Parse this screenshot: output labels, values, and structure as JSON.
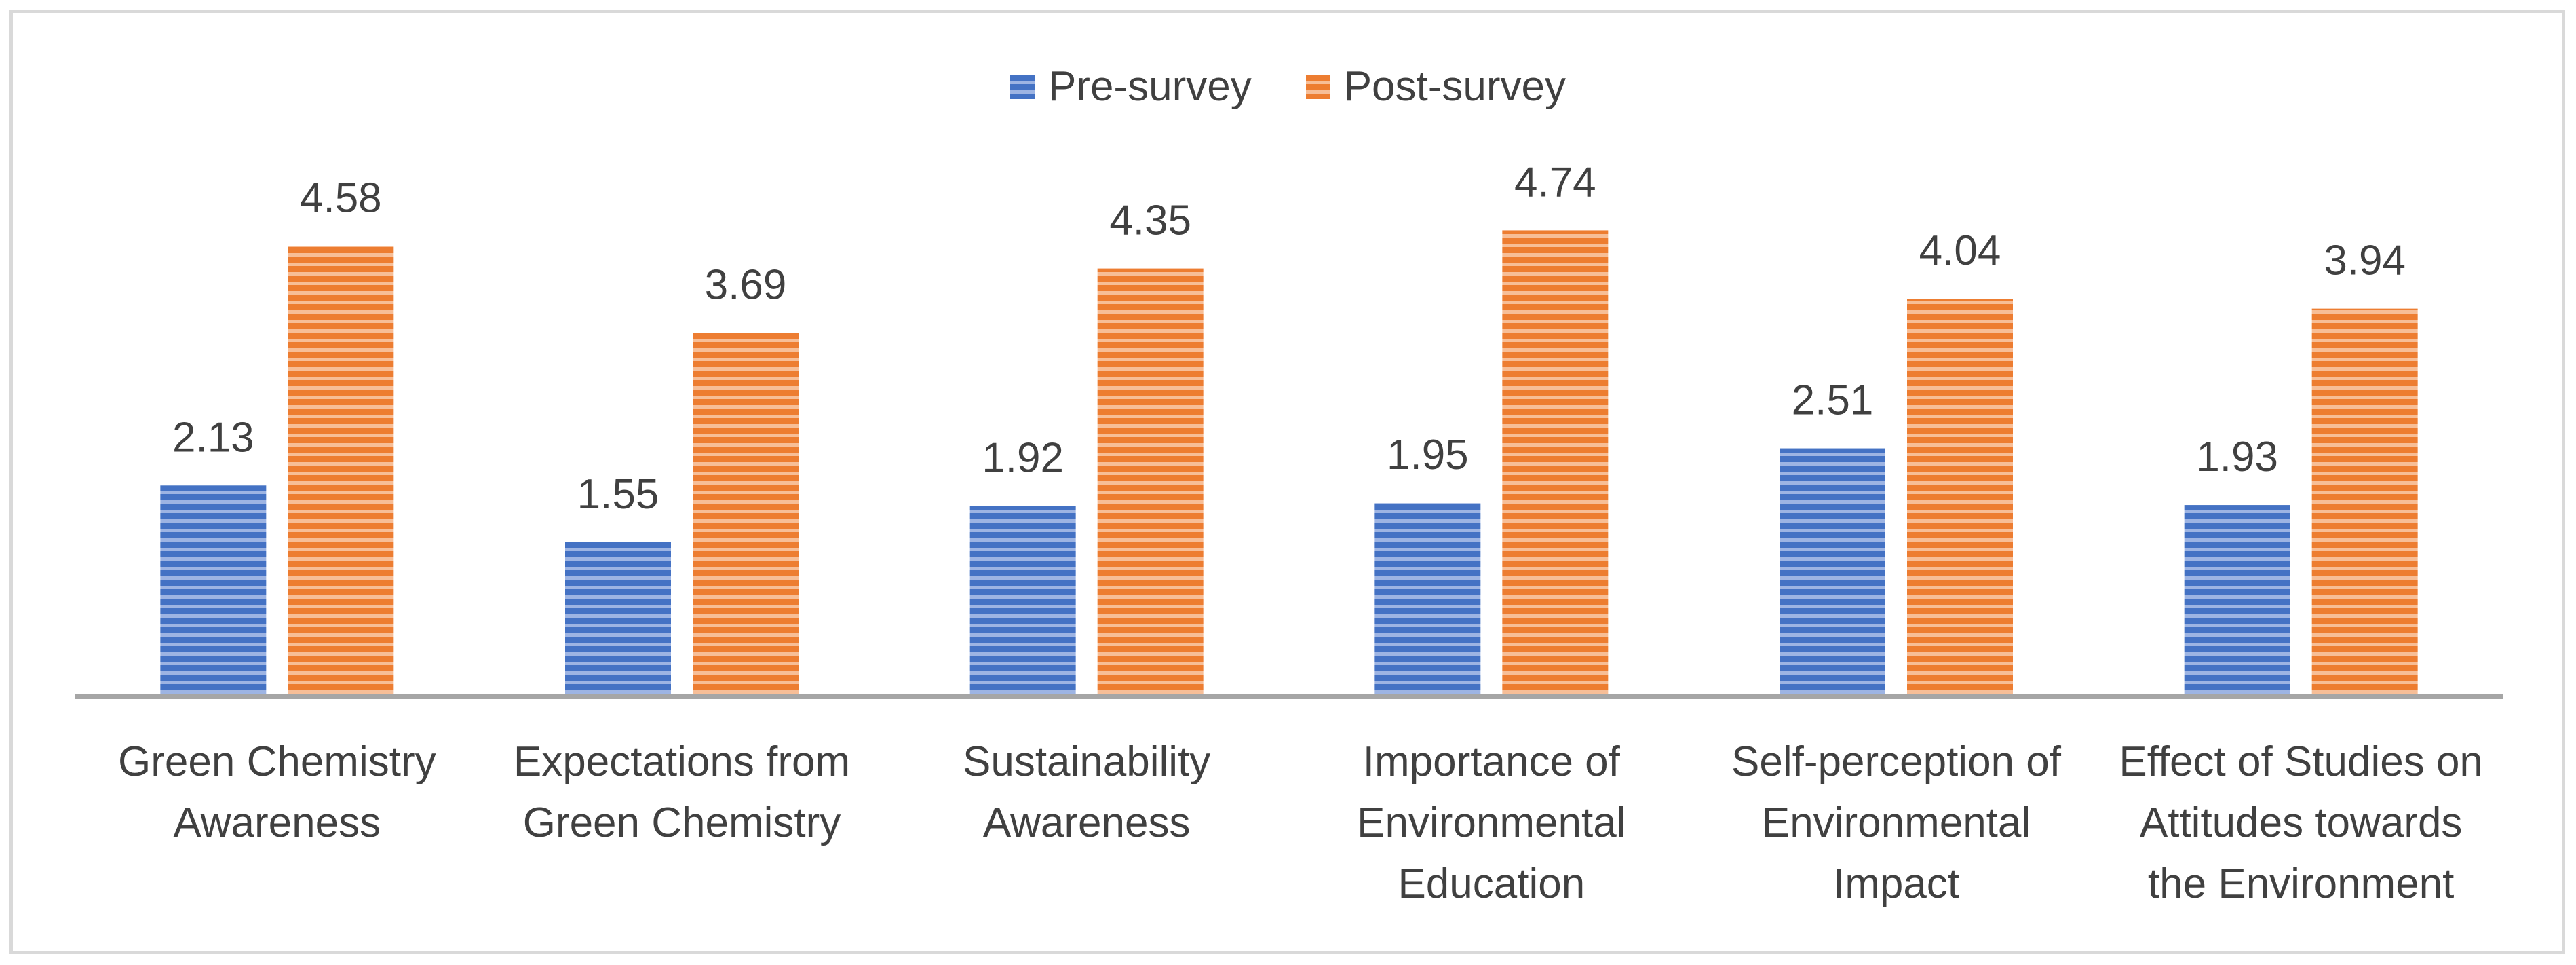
{
  "chart_data": {
    "type": "bar",
    "title": "",
    "xlabel": "",
    "ylabel": "",
    "ylim": [
      0,
      5
    ],
    "legend_position": "top",
    "categories": [
      [
        "Green Chemistry",
        "Awareness"
      ],
      [
        "Expectations from",
        "Green Chemistry"
      ],
      [
        "Sustainability",
        "Awareness"
      ],
      [
        "Importance of",
        "Environmental",
        "Education"
      ],
      [
        "Self-perception of",
        "Environmental",
        "Impact"
      ],
      [
        "Effect of Studies on",
        "Attitudes towards",
        "the Environment"
      ]
    ],
    "series": [
      {
        "name": "Pre-survey",
        "color": "#4472C4",
        "values": [
          2.13,
          1.55,
          1.92,
          1.95,
          2.51,
          1.93
        ],
        "labels": [
          "2.13",
          "1.55",
          "1.92",
          "1.95",
          "2.51",
          "1.93"
        ]
      },
      {
        "name": "Post-survey",
        "color": "#ED7D31",
        "values": [
          4.58,
          3.69,
          4.35,
          4.74,
          4.04,
          3.94
        ],
        "labels": [
          "4.58",
          "3.69",
          "4.35",
          "4.74",
          "4.04",
          "3.94"
        ]
      }
    ]
  }
}
